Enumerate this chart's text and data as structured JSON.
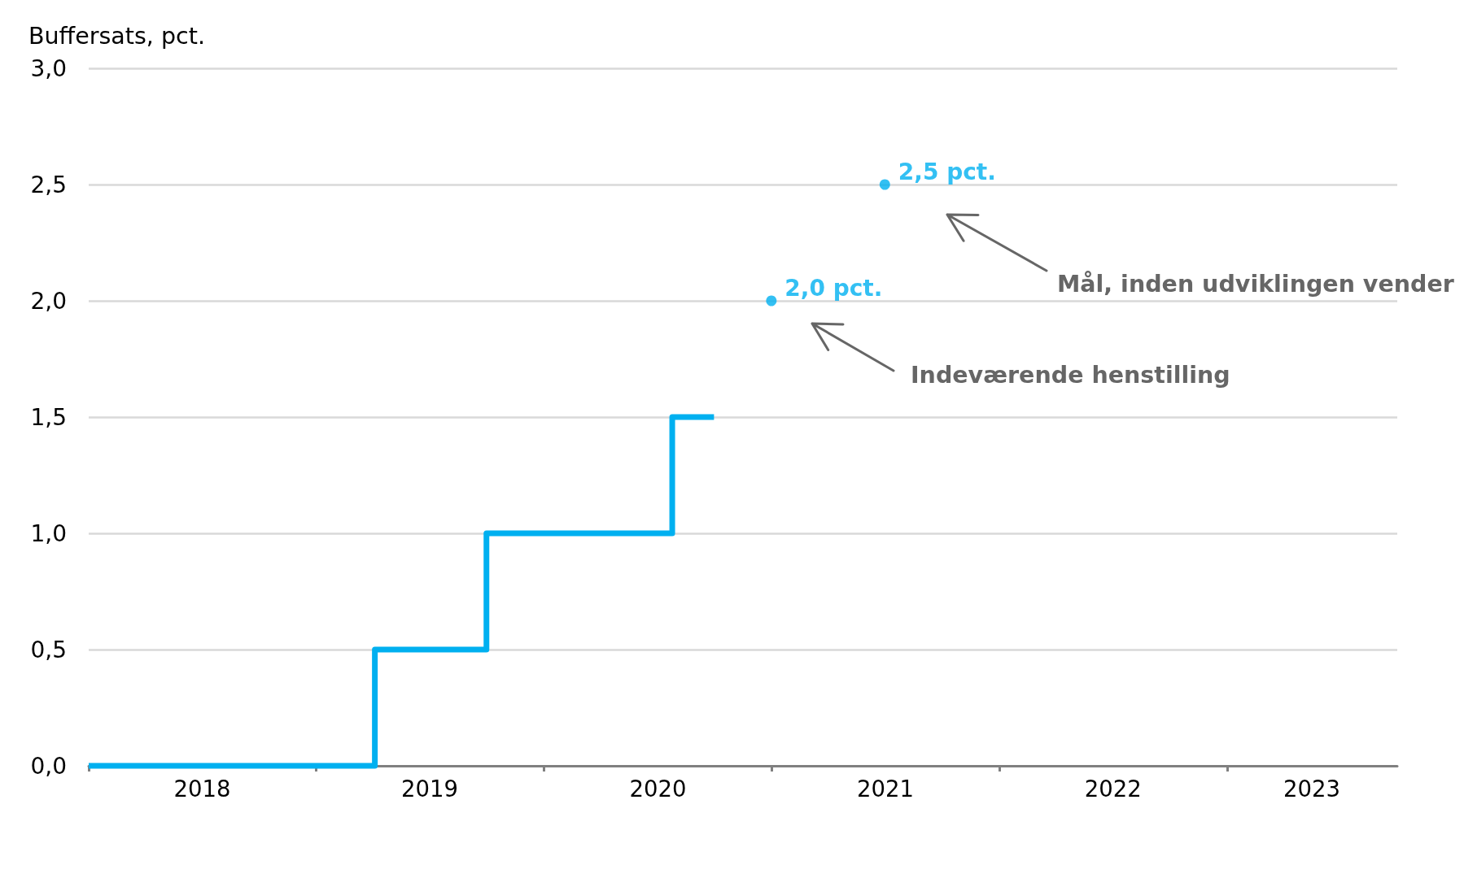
{
  "chart_data": {
    "type": "step",
    "ylabel": "Buffersats, pct.",
    "xlim": [
      "2018-01-01",
      "2023-10-01"
    ],
    "xticks": [
      {
        "value": "2018-01-01",
        "label": null
      },
      {
        "value": "2018-07-02",
        "label": "2018"
      },
      {
        "value": "2019-01-01",
        "label": null
      },
      {
        "value": "2019-07-02",
        "label": "2019"
      },
      {
        "value": "2020-01-01",
        "label": null
      },
      {
        "value": "2020-07-02",
        "label": "2020"
      },
      {
        "value": "2021-01-01",
        "label": null
      },
      {
        "value": "2021-07-02",
        "label": "2021"
      },
      {
        "value": "2022-01-01",
        "label": null
      },
      {
        "value": "2022-07-02",
        "label": "2022"
      },
      {
        "value": "2023-01-01",
        "label": null
      },
      {
        "value": "2023-05-17",
        "label": "2023"
      }
    ],
    "ylim": [
      0,
      3
    ],
    "yticks": [
      {
        "value": 0,
        "label": "0,0"
      },
      {
        "value": 0.5,
        "label": "0,5"
      },
      {
        "value": 1,
        "label": "1,0"
      },
      {
        "value": 1.5,
        "label": "1,5"
      },
      {
        "value": 2,
        "label": "2,0"
      },
      {
        "value": 2.5,
        "label": "2,5"
      },
      {
        "value": 3,
        "label": "3,0"
      }
    ],
    "grid": "y",
    "series": [
      {
        "color": "#00b0f0",
        "x": [
          "2018-01-01",
          "2019-04-05",
          "2019-10-01",
          "2020-07-25",
          "2020-09-30"
        ],
        "values": [
          0,
          0.5,
          1,
          1.5,
          1.5
        ]
      },
      {
        "type": "scatter",
        "color": "#00b0f0",
        "x": [
          "2020-12-31",
          "2021-07-01"
        ],
        "values": [
          2,
          2.5
        ],
        "value_labels": [
          "2,0 pct.",
          "2,5 pct."
        ]
      }
    ],
    "annotations": [
      "Indeværende henstilling",
      "Mål, inden udviklingen vender"
    ]
  }
}
